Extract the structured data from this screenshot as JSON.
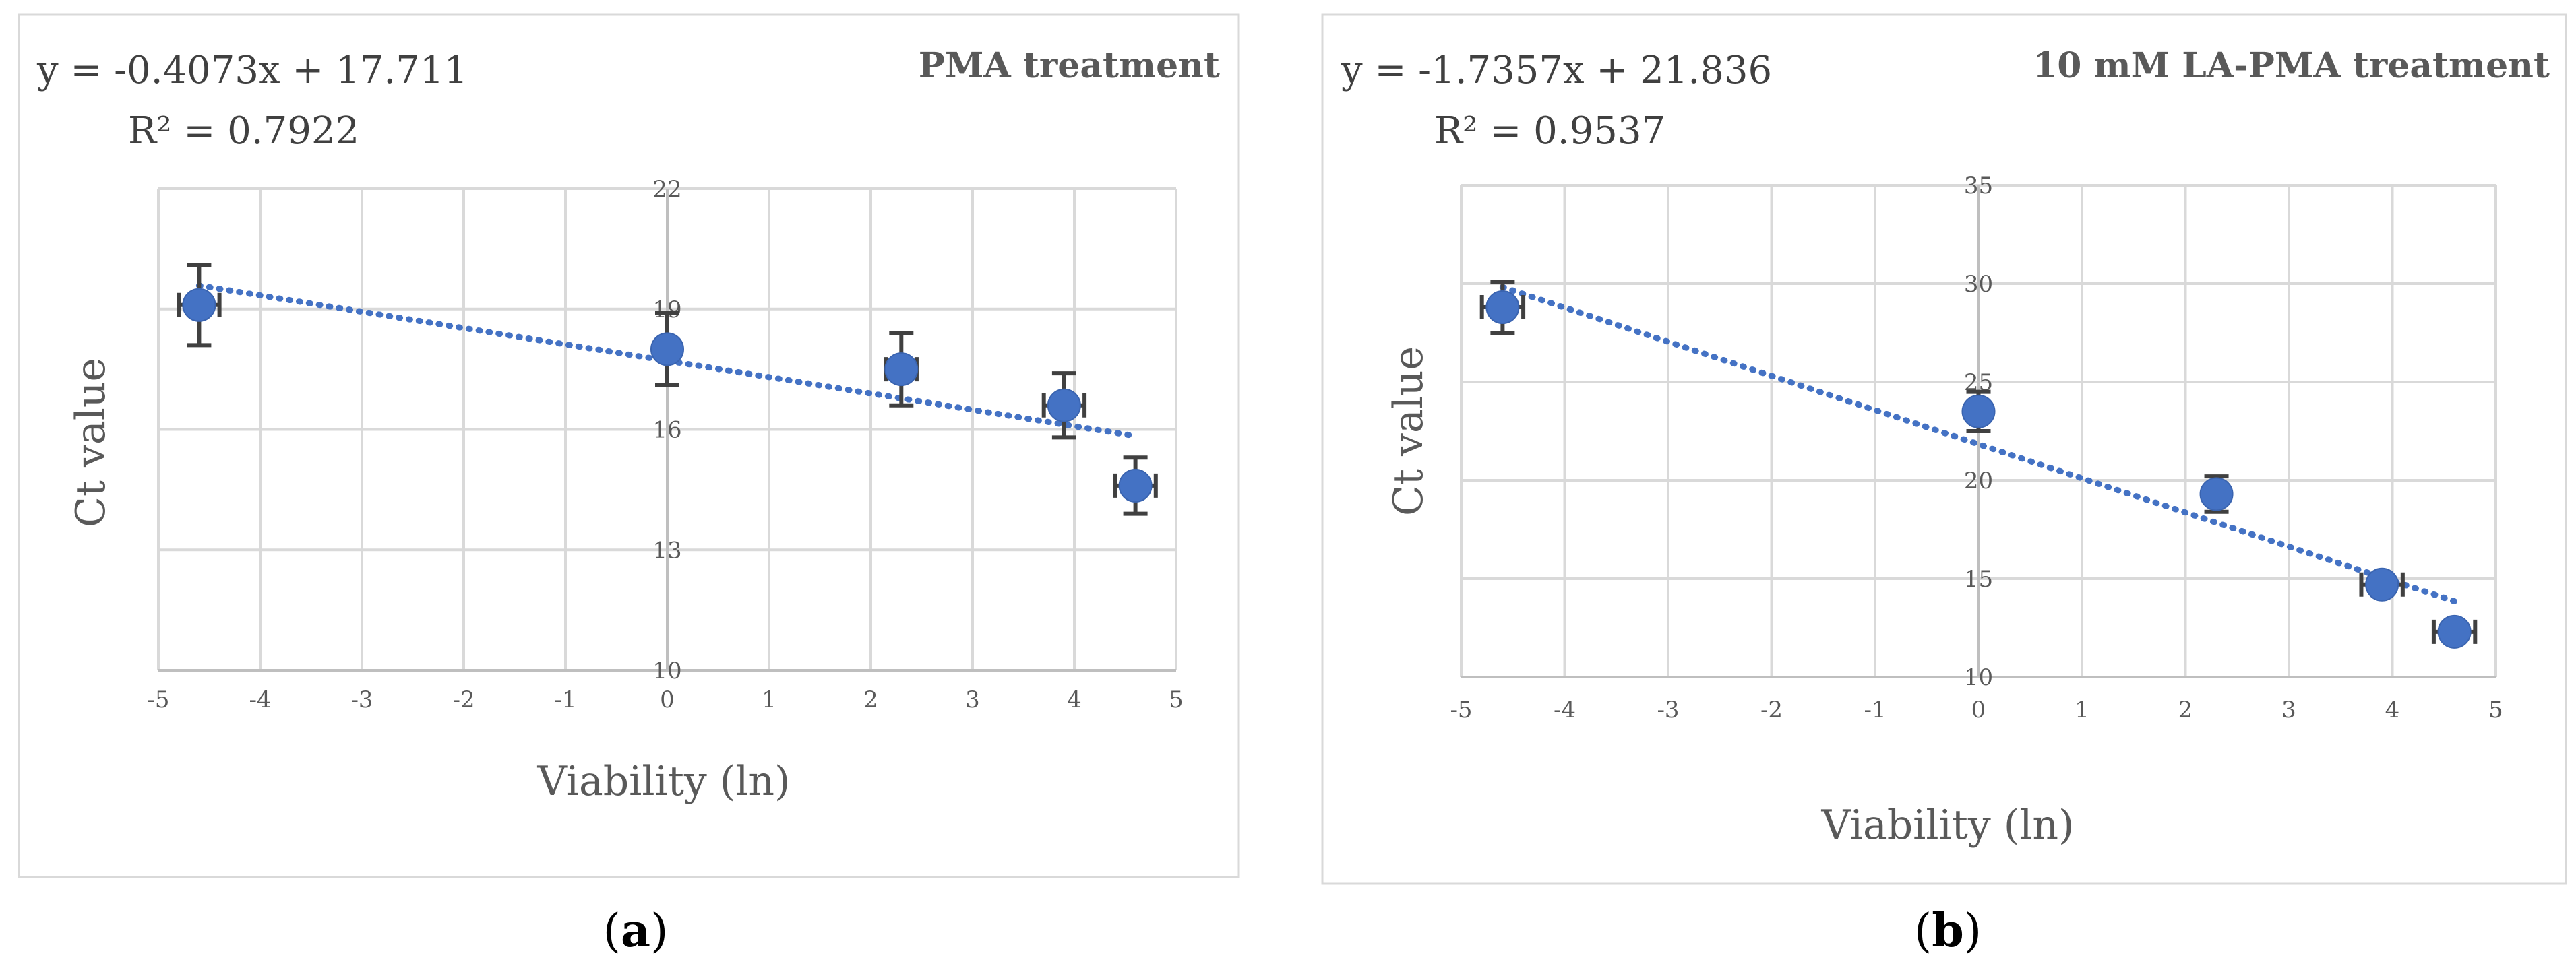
{
  "chart_data": [
    {
      "type": "scatter",
      "title": "PMA treatment",
      "xlabel": "Viability (ln)",
      "ylabel": "Ct value",
      "xlim": [
        -5,
        5
      ],
      "ylim": [
        10,
        22
      ],
      "xticks": [
        -5,
        -4,
        -3,
        -2,
        -1,
        0,
        1,
        2,
        3,
        4,
        5
      ],
      "yticks": [
        10,
        13,
        16,
        19,
        22
      ],
      "grid": true,
      "x": [
        -4.6,
        0,
        2.3,
        3.9,
        4.6
      ],
      "y": [
        19.1,
        18.0,
        17.5,
        16.6,
        14.6
      ],
      "y_err": [
        1.0,
        0.9,
        0.9,
        0.8,
        0.7
      ],
      "x_err": [
        0.2,
        0.0,
        0.15,
        0.2,
        0.2
      ],
      "trendline": {
        "type": "linear",
        "slope": -0.4073,
        "intercept": 17.711,
        "x_range": [
          -4.6,
          4.6
        ]
      },
      "equation": "y = -0.4073x + 17.711",
      "r_squared": "R² = 0.7922",
      "caption_letter": "a"
    },
    {
      "type": "scatter",
      "title": "10 mM LA-PMA treatment",
      "xlabel": "Viability (ln)",
      "ylabel": "Ct value",
      "xlim": [
        -5,
        5
      ],
      "ylim": [
        10,
        35
      ],
      "xticks": [
        -5,
        -4,
        -3,
        -2,
        -1,
        0,
        1,
        2,
        3,
        4,
        5
      ],
      "yticks": [
        10,
        15,
        20,
        25,
        30,
        35
      ],
      "grid": true,
      "x": [
        -4.6,
        0,
        2.3,
        3.9,
        4.6
      ],
      "y": [
        28.8,
        23.5,
        19.3,
        14.7,
        12.3
      ],
      "y_err": [
        1.3,
        1.0,
        0.9,
        0.5,
        0.4
      ],
      "x_err": [
        0.2,
        0.0,
        0.05,
        0.2,
        0.2
      ],
      "trendline": {
        "type": "linear",
        "slope": -1.7357,
        "intercept": 21.836,
        "x_range": [
          -4.6,
          4.6
        ]
      },
      "equation": "y = -1.7357x + 21.836",
      "r_squared": "R² = 0.9537",
      "caption_letter": "b"
    }
  ]
}
